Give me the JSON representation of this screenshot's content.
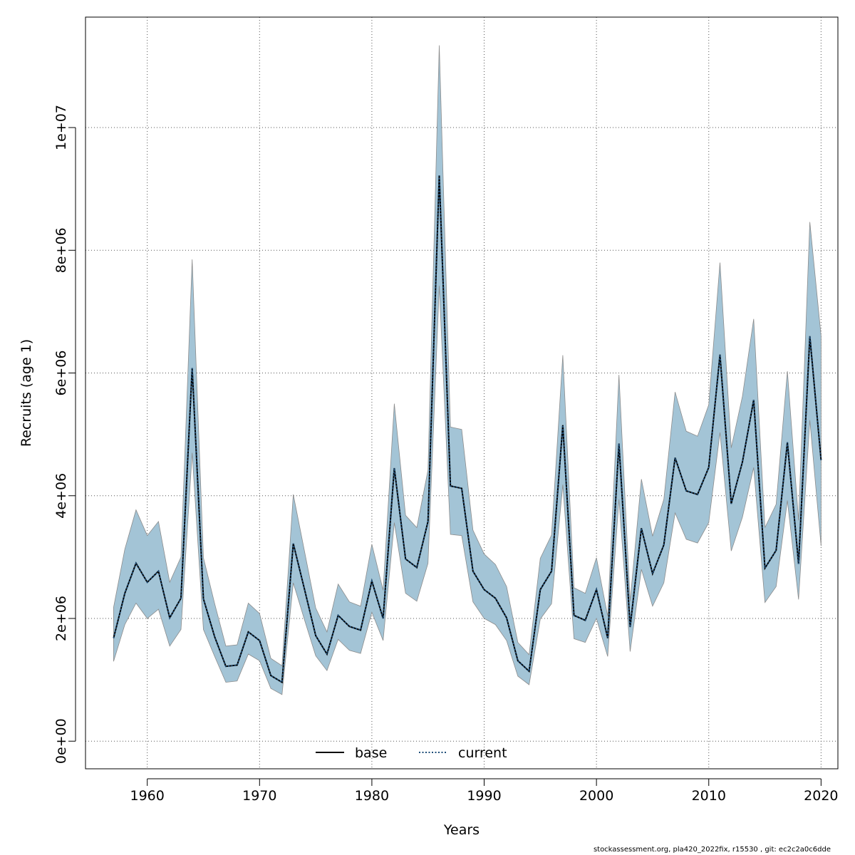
{
  "chart_data": {
    "type": "line",
    "xlabel": "Years",
    "ylabel": "Recruits (age 1)",
    "xlim": [
      1954.5,
      2021.5
    ],
    "ylim": [
      -450000,
      11800000
    ],
    "x_ticks": [
      1960,
      1970,
      1980,
      1990,
      2000,
      2010,
      2020
    ],
    "x_tick_labels": [
      "1960",
      "1970",
      "1980",
      "1990",
      "2000",
      "2010",
      "2020"
    ],
    "y_ticks": [
      0,
      2000000,
      4000000,
      6000000,
      8000000,
      10000000
    ],
    "y_tick_labels": [
      "0e+00",
      "2e+06",
      "4e+06",
      "6e+06",
      "8e+06",
      "1e+07"
    ],
    "grid": true,
    "legend_position": "bottom",
    "legend": [
      {
        "label": "base",
        "color": "#000000",
        "style": "solid"
      },
      {
        "label": "current",
        "color": "#1f4e79",
        "style": "dotted"
      }
    ],
    "band_color": "#a3c4d6",
    "band_edge_color": "#8c8c8c",
    "x": [
      1957,
      1958,
      1959,
      1960,
      1961,
      1962,
      1963,
      1964,
      1965,
      1966,
      1967,
      1968,
      1969,
      1970,
      1971,
      1972,
      1973,
      1974,
      1975,
      1976,
      1977,
      1978,
      1979,
      1980,
      1981,
      1982,
      1983,
      1984,
      1985,
      1986,
      1987,
      1988,
      1989,
      1990,
      1991,
      1992,
      1993,
      1994,
      1995,
      1996,
      1997,
      1998,
      1999,
      2000,
      2001,
      2002,
      2003,
      2004,
      2005,
      2006,
      2007,
      2008,
      2009,
      2010,
      2011,
      2012,
      2013,
      2014,
      2015,
      2016,
      2017,
      2018,
      2019,
      2020
    ],
    "series": [
      {
        "name": "base",
        "values": [
          1680000,
          2410000,
          2900000,
          2590000,
          2770000,
          2010000,
          2330000,
          6080000,
          2320000,
          1700000,
          1220000,
          1240000,
          1780000,
          1640000,
          1070000,
          960000,
          3220000,
          2480000,
          1720000,
          1420000,
          2050000,
          1870000,
          1810000,
          2610000,
          2000000,
          4450000,
          2970000,
          2830000,
          3580000,
          9220000,
          4160000,
          4120000,
          2770000,
          2470000,
          2330000,
          2010000,
          1310000,
          1140000,
          2470000,
          2770000,
          5150000,
          2050000,
          1970000,
          2470000,
          1680000,
          4850000,
          1860000,
          3470000,
          2730000,
          3200000,
          4620000,
          4080000,
          4020000,
          4460000,
          6300000,
          3870000,
          4550000,
          5560000,
          2820000,
          3110000,
          4870000,
          2890000,
          6600000,
          4580000
        ]
      },
      {
        "name": "current",
        "values": [
          1680000,
          2410000,
          2900000,
          2590000,
          2770000,
          2010000,
          2330000,
          6080000,
          2320000,
          1700000,
          1220000,
          1240000,
          1780000,
          1640000,
          1070000,
          960000,
          3220000,
          2480000,
          1720000,
          1420000,
          2050000,
          1870000,
          1810000,
          2610000,
          2000000,
          4450000,
          2970000,
          2830000,
          3580000,
          9220000,
          4160000,
          4120000,
          2770000,
          2470000,
          2330000,
          2010000,
          1310000,
          1140000,
          2470000,
          2770000,
          5150000,
          2050000,
          1970000,
          2470000,
          1680000,
          4850000,
          1860000,
          3470000,
          2730000,
          3200000,
          4620000,
          4080000,
          4020000,
          4460000,
          6300000,
          3870000,
          4550000,
          5560000,
          2820000,
          3110000,
          4870000,
          2890000,
          6600000,
          4580000
        ]
      }
    ],
    "ci_lower": [
      1300000,
      1900000,
      2250000,
      2000000,
      2150000,
      1550000,
      1820000,
      4700000,
      1820000,
      1380000,
      960000,
      980000,
      1420000,
      1310000,
      860000,
      760000,
      2580000,
      1980000,
      1390000,
      1150000,
      1660000,
      1480000,
      1430000,
      2100000,
      1640000,
      3560000,
      2410000,
      2280000,
      2900000,
      7420000,
      3370000,
      3350000,
      2270000,
      2000000,
      1900000,
      1640000,
      1060000,
      920000,
      1990000,
      2240000,
      4180000,
      1670000,
      1610000,
      2000000,
      1380000,
      3940000,
      1460000,
      2800000,
      2200000,
      2580000,
      3720000,
      3290000,
      3230000,
      3560000,
      5030000,
      3100000,
      3650000,
      4460000,
      2260000,
      2520000,
      3920000,
      2310000,
      5230000,
      3180000
    ],
    "ci_upper": [
      2180000,
      3130000,
      3770000,
      3350000,
      3580000,
      2590000,
      3000000,
      7850000,
      2990000,
      2240000,
      1550000,
      1570000,
      2250000,
      2080000,
      1350000,
      1230000,
      4020000,
      3100000,
      2170000,
      1780000,
      2560000,
      2270000,
      2200000,
      3210000,
      2460000,
      5500000,
      3680000,
      3480000,
      4420000,
      11340000,
      5120000,
      5080000,
      3440000,
      3050000,
      2880000,
      2520000,
      1610000,
      1410000,
      2980000,
      3360000,
      6290000,
      2500000,
      2410000,
      2990000,
      2040000,
      5970000,
      2280000,
      4270000,
      3340000,
      3940000,
      5690000,
      5050000,
      4970000,
      5480000,
      7800000,
      4780000,
      5620000,
      6880000,
      3480000,
      3860000,
      6030000,
      3600000,
      8460000,
      6600000
    ]
  },
  "footer_text": "stockassessment.org, pla420_2022fix, r15530 , git: ec2c2a0c6dde"
}
